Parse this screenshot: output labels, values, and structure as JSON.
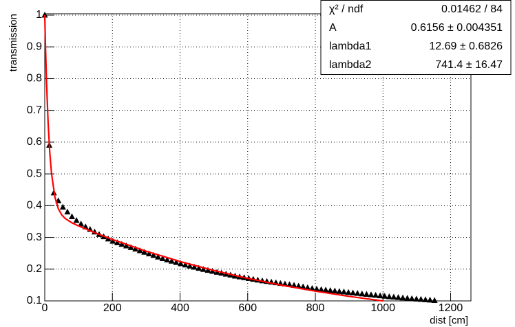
{
  "chart_data": {
    "type": "scatter",
    "x_label": "dist [cm]",
    "y_label": "transmission",
    "xlim": [
      0,
      1260
    ],
    "ylim": [
      0.1,
      1.0
    ],
    "xticks": [
      0,
      200,
      400,
      600,
      800,
      1000,
      1200
    ],
    "yticks": [
      0.1,
      0.2,
      0.3,
      0.4,
      0.5,
      0.6,
      0.7,
      0.8,
      0.9,
      1
    ],
    "grid": true,
    "series": [
      {
        "kind": "points",
        "color": "#000000",
        "x": [
          0,
          13.4,
          26.8,
          40.2,
          53.6,
          67,
          80.4,
          93.8,
          107.2,
          120.6,
          134,
          147.4,
          160.8,
          174.2,
          187.6,
          201,
          214.4,
          227.8,
          241.2,
          254.6,
          268,
          281.4,
          294.8,
          308.2,
          321.6,
          335,
          348.4,
          361.8,
          375.2,
          388.6,
          402,
          415.4,
          428.8,
          442.2,
          455.6,
          469,
          482.4,
          495.8,
          509.2,
          522.6,
          536,
          549.4,
          562.8,
          576.2,
          589.6,
          603,
          616.4,
          629.8,
          643.2,
          656.6,
          670,
          683.4,
          696.8,
          710.2,
          723.6,
          737,
          750.4,
          763.8,
          777.2,
          790.6,
          804,
          817.4,
          830.8,
          844.2,
          857.6,
          871,
          884.4,
          897.8,
          911.2,
          924.6,
          938,
          951.4,
          964.8,
          978.2,
          991.6,
          1005,
          1018.4,
          1031.8,
          1045.2,
          1058.6,
          1072,
          1085.4,
          1098.8,
          1112.2,
          1125.6,
          1139,
          1152.4
        ],
        "values": [
          1.0,
          0.59,
          0.44,
          0.415,
          0.395,
          0.38,
          0.365,
          0.353,
          0.342,
          0.333,
          0.325,
          0.317,
          0.309,
          0.302,
          0.295,
          0.288,
          0.283,
          0.278,
          0.273,
          0.268,
          0.263,
          0.258,
          0.253,
          0.248,
          0.243,
          0.238,
          0.233,
          0.229,
          0.225,
          0.221,
          0.217,
          0.213,
          0.2095,
          0.206,
          0.2025,
          0.199,
          0.196,
          0.193,
          0.19,
          0.187,
          0.184,
          0.181,
          0.178,
          0.1755,
          0.173,
          0.1705,
          0.168,
          0.1655,
          0.163,
          0.161,
          0.159,
          0.157,
          0.155,
          0.153,
          0.151,
          0.149,
          0.1465,
          0.144,
          0.1415,
          0.139,
          0.137,
          0.1355,
          0.134,
          0.1325,
          0.131,
          0.1295,
          0.128,
          0.1265,
          0.125,
          0.1235,
          0.122,
          0.1205,
          0.119,
          0.1175,
          0.116,
          0.1145,
          0.113,
          0.1118,
          0.1105,
          0.1093,
          0.108,
          0.1068,
          0.1056,
          0.1045,
          0.1034,
          0.1023,
          0.1012
        ]
      },
      {
        "kind": "line",
        "color": "#ff0000",
        "x": [
          0,
          2,
          5,
          10,
          15,
          20,
          30,
          40,
          50,
          60,
          80,
          100,
          150,
          200,
          300,
          400,
          500,
          600,
          700,
          800,
          900,
          1000
        ],
        "values": [
          1.0,
          0.9092,
          0.797,
          0.6592,
          0.5656,
          0.5015,
          0.4271,
          0.3905,
          0.3713,
          0.3599,
          0.3461,
          0.3361,
          0.3139,
          0.2935,
          0.2565,
          0.2241,
          0.1959,
          0.1711,
          0.1495,
          0.1307,
          0.1142,
          0.0998
        ]
      }
    ],
    "stats": [
      {
        "name": "χ² / ndf",
        "value": "0.01462 / 84"
      },
      {
        "name": "A",
        "value": "0.6156 ± 0.004351"
      },
      {
        "name": "lambda1",
        "value": "12.69 ± 0.6826"
      },
      {
        "name": "lambda2",
        "value": "741.4 ± 16.47"
      }
    ]
  }
}
